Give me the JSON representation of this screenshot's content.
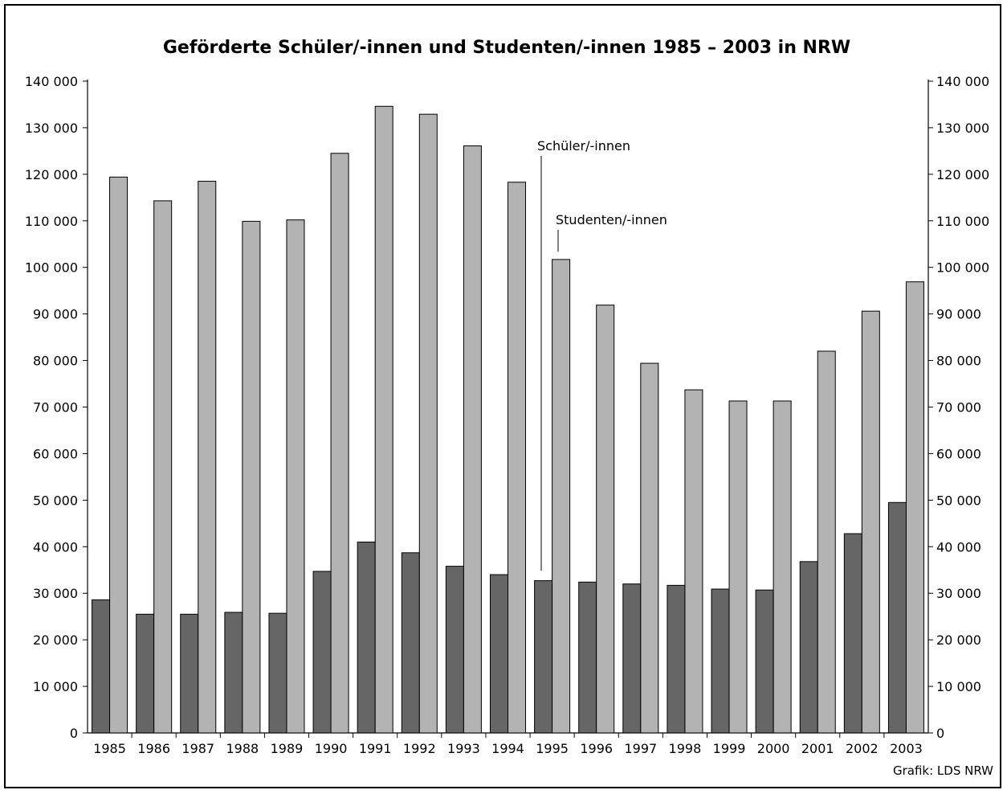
{
  "chart_data": {
    "type": "bar",
    "title": "Geförderte Schüler/-innen und Studenten/-innen 1985 – 2003 in NRW",
    "xlabel": "",
    "ylabel": "",
    "ylim": [
      0,
      140000
    ],
    "y_ticks": [
      0,
      10000,
      20000,
      30000,
      40000,
      50000,
      60000,
      70000,
      80000,
      90000,
      100000,
      110000,
      120000,
      130000,
      140000
    ],
    "y_tick_labels": [
      "0",
      "10 000",
      "20 000",
      "30 000",
      "40 000",
      "50 000",
      "60 000",
      "70 000",
      "80 000",
      "90 000",
      "100 000",
      "110 000",
      "120 000",
      "130 000",
      "140 000"
    ],
    "categories": [
      "1985",
      "1986",
      "1987",
      "1988",
      "1989",
      "1990",
      "1991",
      "1992",
      "1993",
      "1994",
      "1995",
      "1996",
      "1997",
      "1998",
      "1999",
      "2000",
      "2001",
      "2002",
      "2003"
    ],
    "series": [
      {
        "name": "Schüler/-innen",
        "color": "#666666",
        "values": [
          28600,
          25500,
          25500,
          25900,
          25700,
          34700,
          41000,
          38700,
          35800,
          34000,
          32700,
          32400,
          32000,
          31700,
          30900,
          30700,
          36800,
          42800,
          49500
        ]
      },
      {
        "name": "Studenten/-innen",
        "color": "#b3b3b3",
        "values": [
          119400,
          114300,
          118500,
          109900,
          110200,
          124500,
          134600,
          132900,
          126100,
          118300,
          101700,
          91900,
          79400,
          73700,
          71300,
          71300,
          82000,
          90600,
          96900
        ]
      }
    ],
    "grid": false,
    "legend": "annotations near 1995 bars",
    "credit": "Grafik: LDS NRW"
  }
}
